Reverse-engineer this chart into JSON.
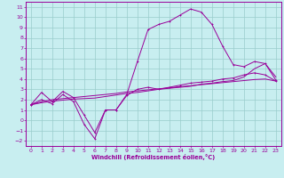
{
  "xlabel": "Windchill (Refroidissement éolien,°C)",
  "xlim": [
    -0.5,
    23.5
  ],
  "ylim": [
    -2.5,
    11.5
  ],
  "xticks": [
    0,
    1,
    2,
    3,
    4,
    5,
    6,
    7,
    8,
    9,
    10,
    11,
    12,
    13,
    14,
    15,
    16,
    17,
    18,
    19,
    20,
    21,
    22,
    23
  ],
  "yticks": [
    -2,
    -1,
    0,
    1,
    2,
    3,
    4,
    5,
    6,
    7,
    8,
    9,
    10,
    11
  ],
  "bg_color": "#c8eef0",
  "line_color": "#990099",
  "grid_color": "#99cccc",
  "line1_y": [
    1.5,
    2.7,
    1.8,
    2.8,
    2.2,
    0.5,
    -1.2,
    1.0,
    1.0,
    2.4,
    3.0,
    3.2,
    3.0,
    3.2,
    3.4,
    3.6,
    3.7,
    3.8,
    4.0,
    4.1,
    4.4,
    4.6,
    4.4,
    3.8
  ],
  "line2_y": [
    1.5,
    1.8,
    2.0,
    2.1,
    2.2,
    2.3,
    2.4,
    2.5,
    2.6,
    2.75,
    2.85,
    2.95,
    3.05,
    3.15,
    3.25,
    3.35,
    3.45,
    3.55,
    3.65,
    3.75,
    3.85,
    3.95,
    4.0,
    3.8
  ],
  "line3_y": [
    1.5,
    1.7,
    1.85,
    1.95,
    2.05,
    2.1,
    2.15,
    2.3,
    2.45,
    2.6,
    2.7,
    2.85,
    3.0,
    3.1,
    3.2,
    3.3,
    3.5,
    3.6,
    3.75,
    3.85,
    4.2,
    5.0,
    5.5,
    4.2
  ],
  "line4_y": [
    1.5,
    2.0,
    1.6,
    2.5,
    1.8,
    -0.4,
    -1.8,
    1.0,
    1.0,
    2.5,
    5.7,
    8.8,
    9.3,
    9.6,
    10.2,
    10.8,
    10.5,
    9.3,
    7.2,
    5.4,
    5.2,
    5.7,
    5.5,
    3.9
  ],
  "marker_indices_line1": [
    0,
    1,
    2,
    3,
    4,
    5,
    6,
    7,
    8,
    9,
    10,
    11,
    12,
    13,
    14,
    15,
    16,
    17,
    18,
    19,
    20,
    21,
    22,
    23
  ],
  "marker_indices_line4": [
    0,
    1,
    2,
    3,
    4,
    5,
    6,
    7,
    8,
    9,
    10,
    11,
    12,
    13,
    14,
    15,
    16,
    17,
    18,
    19,
    20,
    21,
    22,
    23
  ]
}
